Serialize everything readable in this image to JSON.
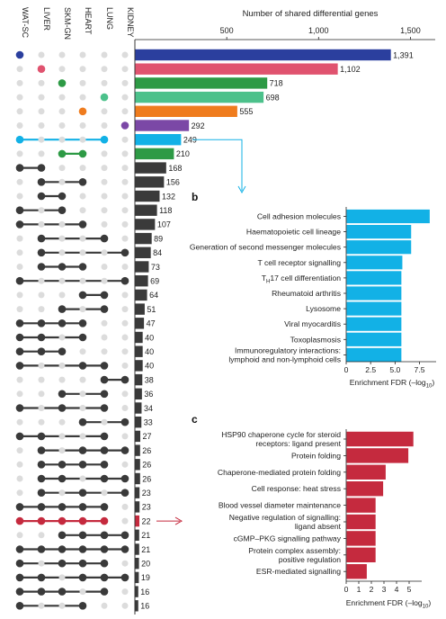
{
  "chart_data": [
    {
      "type": "bar",
      "subtype": "upset",
      "title": "Number of shared differential genes",
      "xlim": [
        0,
        1560
      ],
      "xticks": [
        500,
        1000,
        1500
      ],
      "xtick_labels": [
        "500",
        "1,000",
        "1,500"
      ],
      "sets": [
        "WAT-SC",
        "LIVER",
        "SKM-GN",
        "HEART",
        "LUNG",
        "KIDNEY"
      ],
      "colors": {
        "WAT-SC": "#2b3f9e",
        "LIVER": "#e0536f",
        "SKM-GN": "#2d9a45",
        "HEART": "#ef7c1e",
        "LUNG": "#4cc18b",
        "KIDNEY": "#7b48a6",
        "shared_lung_watsc": "#12b1e6",
        "shared_skm_heart": "#2d9a45",
        "shared_highlight": "#c52a3e",
        "other": "#3a3a3a",
        "inactive_dot": "#dcdcdc"
      },
      "intersections": [
        {
          "sets": [
            0
          ],
          "value": 1391,
          "label": "1,391",
          "color": "#2b3f9e"
        },
        {
          "sets": [
            1
          ],
          "value": 1102,
          "label": "1,102",
          "color": "#e0536f"
        },
        {
          "sets": [
            2
          ],
          "value": 718,
          "label": "718",
          "color": "#2d9a45"
        },
        {
          "sets": [
            4
          ],
          "value": 698,
          "label": "698",
          "color": "#4cc18b"
        },
        {
          "sets": [
            3
          ],
          "value": 555,
          "label": "555",
          "color": "#ef7c1e"
        },
        {
          "sets": [
            5
          ],
          "value": 292,
          "label": "292",
          "color": "#7b48a6"
        },
        {
          "sets": [
            0,
            4
          ],
          "value": 249,
          "label": "249",
          "color": "#12b1e6"
        },
        {
          "sets": [
            2,
            3
          ],
          "value": 210,
          "label": "210",
          "color": "#2d9a45"
        },
        {
          "sets": [
            0,
            1
          ],
          "value": 168,
          "label": "168",
          "color": "#3a3a3a"
        },
        {
          "sets": [
            1,
            3
          ],
          "value": 156,
          "label": "156",
          "color": "#3a3a3a"
        },
        {
          "sets": [
            1,
            2
          ],
          "value": 132,
          "label": "132",
          "color": "#3a3a3a"
        },
        {
          "sets": [
            0,
            2
          ],
          "value": 118,
          "label": "118",
          "color": "#3a3a3a"
        },
        {
          "sets": [
            0,
            3
          ],
          "value": 107,
          "label": "107",
          "color": "#3a3a3a"
        },
        {
          "sets": [
            1,
            4
          ],
          "value": 89,
          "label": "89",
          "color": "#3a3a3a"
        },
        {
          "sets": [
            1,
            5
          ],
          "value": 84,
          "label": "84",
          "color": "#3a3a3a"
        },
        {
          "sets": [
            1,
            2,
            3
          ],
          "value": 73,
          "label": "73",
          "color": "#3a3a3a"
        },
        {
          "sets": [
            0,
            5
          ],
          "value": 69,
          "label": "69",
          "color": "#3a3a3a"
        },
        {
          "sets": [
            3,
            4
          ],
          "value": 64,
          "label": "64",
          "color": "#3a3a3a"
        },
        {
          "sets": [
            2,
            4
          ],
          "value": 51,
          "label": "51",
          "color": "#3a3a3a"
        },
        {
          "sets": [
            0,
            1,
            2,
            3
          ],
          "value": 47,
          "label": "47",
          "color": "#3a3a3a"
        },
        {
          "sets": [
            0,
            1,
            3
          ],
          "value": 40,
          "label": "40",
          "color": "#3a3a3a"
        },
        {
          "sets": [
            0,
            1,
            2
          ],
          "value": 40,
          "label": "40",
          "color": "#3a3a3a"
        },
        {
          "sets": [
            0,
            3,
            4
          ],
          "value": 40,
          "label": "40",
          "color": "#3a3a3a"
        },
        {
          "sets": [
            4,
            5
          ],
          "value": 38,
          "label": "38",
          "color": "#3a3a3a"
        },
        {
          "sets": [
            2,
            4
          ],
          "value": 36,
          "label": "36",
          "color": "#3a3a3a"
        },
        {
          "sets": [
            0,
            2,
            4
          ],
          "value": 34,
          "label": "34",
          "color": "#3a3a3a"
        },
        {
          "sets": [
            3,
            5
          ],
          "value": 33,
          "label": "33",
          "color": "#3a3a3a"
        },
        {
          "sets": [
            0,
            1,
            4
          ],
          "value": 27,
          "label": "27",
          "color": "#3a3a3a"
        },
        {
          "sets": [
            1,
            3,
            4,
            5
          ],
          "value": 26,
          "label": "26",
          "color": "#3a3a3a"
        },
        {
          "sets": [
            1,
            2,
            3,
            4
          ],
          "value": 26,
          "label": "26",
          "color": "#3a3a3a"
        },
        {
          "sets": [
            1,
            2,
            4,
            5
          ],
          "value": 26,
          "label": "26",
          "color": "#3a3a3a"
        },
        {
          "sets": [
            1,
            3,
            5
          ],
          "value": 23,
          "label": "23",
          "color": "#3a3a3a"
        },
        {
          "sets": [
            0,
            1,
            2,
            3,
            4
          ],
          "value": 23,
          "label": "23",
          "color": "#3a3a3a"
        },
        {
          "sets": [
            0,
            1,
            2,
            3,
            4
          ],
          "value": 22,
          "label": "22",
          "color": "#c52a3e",
          "highlight": true
        },
        {
          "sets": [
            2,
            3,
            4,
            5
          ],
          "value": 21,
          "label": "21",
          "color": "#3a3a3a"
        },
        {
          "sets": [
            0,
            1,
            2,
            3,
            4,
            5
          ],
          "value": 21,
          "label": "21",
          "color": "#3a3a3a"
        },
        {
          "sets": [
            0,
            2,
            3,
            4
          ],
          "value": 20,
          "label": "20",
          "color": "#3a3a3a"
        },
        {
          "sets": [
            0,
            1,
            3,
            4,
            5
          ],
          "value": 19,
          "label": "19",
          "color": "#3a3a3a"
        },
        {
          "sets": [
            0,
            1,
            2,
            4
          ],
          "value": 16,
          "label": "16",
          "color": "#3a3a3a"
        },
        {
          "sets": [
            0,
            3
          ],
          "value": 16,
          "label": "16",
          "color": "#3a3a3a"
        }
      ]
    },
    {
      "type": "bar",
      "panel": "b",
      "orientation": "horizontal",
      "color": "#12b1e6",
      "xlabel_main": "Enrichment FDR (–log",
      "xlabel_sub": "10",
      "xlabel_end": ")",
      "xlim": [
        0,
        9.2
      ],
      "xticks": [
        0,
        2.5,
        5.0,
        7.5
      ],
      "xtick_labels": [
        "0",
        "2.5",
        "5.0",
        "7.5"
      ],
      "categories": [
        [
          "Cell adhesion molecules"
        ],
        [
          "Haematopoietic cell lineage"
        ],
        [
          "Generation of second messenger molecules"
        ],
        [
          "T cell receptor signalling"
        ],
        [
          "T",
          "H",
          "17 cell differentiation"
        ],
        [
          "Rheumatoid arthritis"
        ],
        [
          "Lysosome"
        ],
        [
          "Viral myocarditis"
        ],
        [
          "Toxoplasmosis"
        ],
        [
          "Immunoregulatory interactions:",
          "lymphoid and non-lymphoid cells"
        ]
      ],
      "values": [
        8.5,
        6.6,
        6.6,
        5.7,
        5.6,
        5.6,
        5.6,
        5.6,
        5.6,
        5.6
      ]
    },
    {
      "type": "bar",
      "panel": "c",
      "orientation": "horizontal",
      "color": "#c52a3e",
      "xlabel_main": "Enrichment FDR (–log",
      "xlabel_sub": "10",
      "xlabel_end": ")",
      "xlim": [
        0,
        6
      ],
      "xticks": [
        0,
        1,
        2,
        3,
        4,
        5
      ],
      "xtick_labels": [
        "0",
        "1",
        "2",
        "3",
        "4",
        "5"
      ],
      "categories": [
        [
          "HSP90 chaperone cycle for steroid",
          "receptors: ligand present"
        ],
        [
          "Protein folding"
        ],
        [
          "Chaperone-mediated protein folding"
        ],
        [
          "Cell response: heat stress"
        ],
        [
          "Blood vessel diameter maintenance"
        ],
        [
          "Negative regulation of signalling:",
          "ligand absent"
        ],
        [
          "cGMP–PKG signalling pathway"
        ],
        [
          "Protein complex assembly:",
          "positive regulation"
        ],
        [
          "ESR-mediated signalling"
        ]
      ],
      "values": [
        5.3,
        4.9,
        3.1,
        2.9,
        2.3,
        2.3,
        2.3,
        2.3,
        1.6
      ]
    }
  ],
  "panel_labels": {
    "b": "b",
    "c": "c"
  }
}
